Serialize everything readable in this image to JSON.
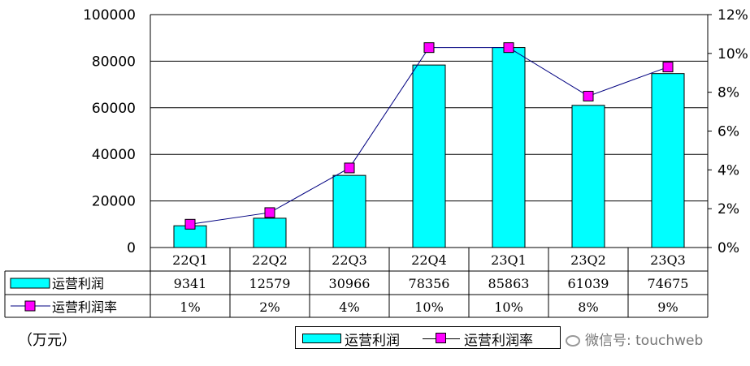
{
  "chart_data": {
    "type": "bar",
    "categories": [
      "22Q1",
      "22Q2",
      "22Q3",
      "22Q4",
      "23Q1",
      "23Q2",
      "23Q3"
    ],
    "series": [
      {
        "name": "运营利润",
        "type": "bar",
        "axis": "left",
        "values": [
          9341,
          12579,
          30966,
          78356,
          85863,
          61039,
          74675
        ],
        "color": "#00FFFF"
      },
      {
        "name": "运营利润率",
        "type": "line",
        "axis": "right",
        "values": [
          1.2,
          1.8,
          4.1,
          10.3,
          10.3,
          7.8,
          9.3
        ],
        "color": "#FF00FF"
      }
    ],
    "y_left": {
      "min": 0,
      "max": 100000,
      "ticks": [
        "0",
        "20000",
        "40000",
        "60000",
        "80000",
        "100000"
      ]
    },
    "y_right": {
      "min": 0,
      "max": 12,
      "ticks": [
        "0%",
        "2%",
        "4%",
        "6%",
        "8%",
        "10%",
        "12%"
      ]
    },
    "table_rows": [
      {
        "label": "运营利润",
        "values": [
          "9341",
          "12579",
          "30966",
          "78356",
          "85863",
          "61039",
          "74675"
        ]
      },
      {
        "label": "运营利润率",
        "values": [
          "1%",
          "2%",
          "4%",
          "10%",
          "10%",
          "8%",
          "9%"
        ]
      }
    ],
    "unit_label": "（万元）",
    "legend": {
      "placement": "bottom",
      "items": [
        "运营利润",
        "运营利润率"
      ]
    },
    "grid": true
  },
  "watermark": "微信号: touchweb"
}
